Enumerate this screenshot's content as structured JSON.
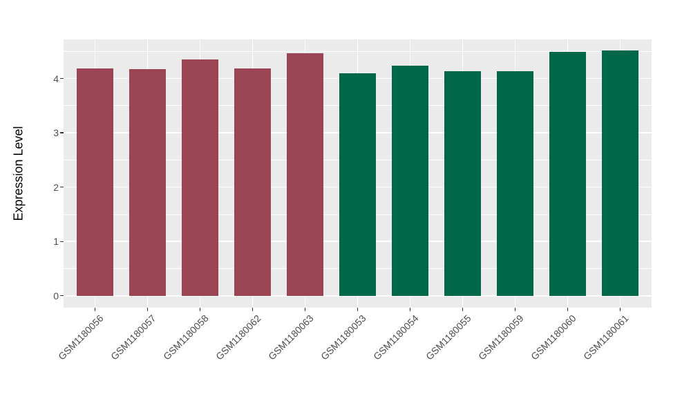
{
  "figure": {
    "background": "#FFFFFF"
  },
  "chart_data": {
    "type": "bar",
    "ylabel": "Expression Level",
    "categories": [
      "GSM1180056",
      "GSM1180057",
      "GSM1180058",
      "GSM1180062",
      "GSM1180063",
      "GSM1180053",
      "GSM1180054",
      "GSM1180055",
      "GSM1180059",
      "GSM1180060",
      "GSM1180061"
    ],
    "values": [
      4.18,
      4.17,
      4.35,
      4.19,
      4.46,
      4.1,
      4.24,
      4.13,
      4.13,
      4.49,
      4.51
    ],
    "bar_colors": [
      "#9B4454",
      "#9B4454",
      "#9B4454",
      "#9B4454",
      "#9B4454",
      "#006849",
      "#006849",
      "#006849",
      "#006849",
      "#006849",
      "#006849"
    ],
    "yticks": [
      0,
      1,
      2,
      3,
      4
    ],
    "ylim": [
      -0.22,
      4.72
    ],
    "grid": true,
    "legend": "none",
    "panel_background": "#EBEBEB",
    "gridline_color": "#FFFFFF",
    "axis_text_color": "#4D4D4D",
    "axis_title_color": "#000000",
    "x_label_rotation_deg": 45
  }
}
